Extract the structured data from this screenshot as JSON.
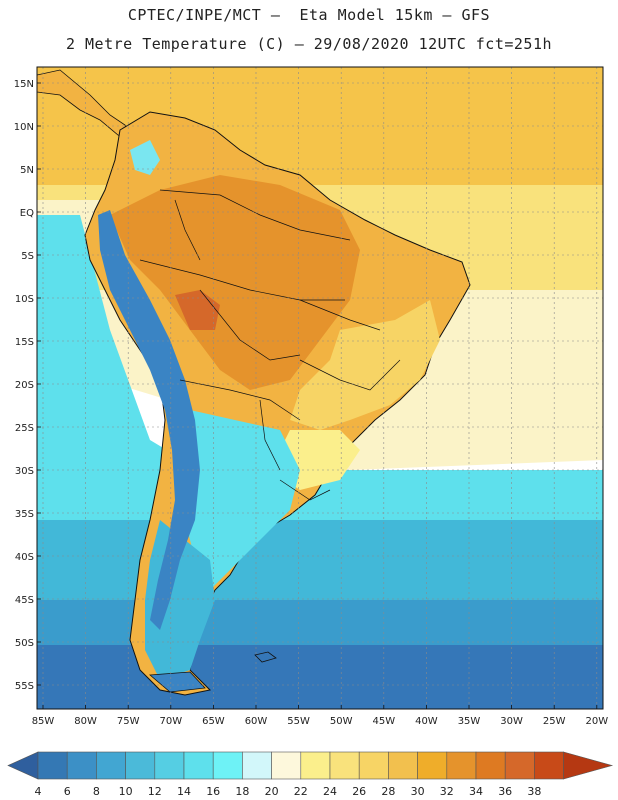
{
  "header": {
    "line1": "CPTEC/INPE/MCT –  Eta Model 15km – GFS",
    "line2": "2 Metre Temperature (C) – 29/08/2020 12UTC fct=251h"
  },
  "map": {
    "lat_labels": [
      "15N",
      "10N",
      "5N",
      "EQ",
      "5S",
      "10S",
      "15S",
      "20S",
      "25S",
      "30S",
      "35S",
      "40S",
      "45S",
      "50S",
      "55S"
    ],
    "lon_labels": [
      "85W",
      "80W",
      "75W",
      "70W",
      "65W",
      "60W",
      "55W",
      "50W",
      "45W",
      "40W",
      "35W",
      "30W",
      "25W",
      "20W"
    ],
    "ocean_colors": {
      "tropical_atlantic": "#f5c44a",
      "equatorial": "#f9e27c",
      "south_atlantic_warm": "#fbf3c8",
      "mid_cool": "#5ee0ec",
      "cool": "#42b8d8",
      "cold": "#3a9ccc",
      "deep_cold": "#3577b8"
    },
    "land_colors": {
      "hot": "#e5932c",
      "very_hot": "#d5682a",
      "warm": "#f2b342",
      "mild": "#f7d465",
      "cool_highland": "#7ae6f0",
      "andes_cold": "#3a84c4"
    }
  },
  "colorbar": {
    "labels": [
      "4",
      "6",
      "8",
      "10",
      "12",
      "14",
      "16",
      "18",
      "20",
      "22",
      "24",
      "26",
      "28",
      "30",
      "32",
      "34",
      "36",
      "38"
    ],
    "colors": [
      "#2f5f9e",
      "#3478b4",
      "#3c90c6",
      "#42a6d2",
      "#4bbad9",
      "#55cee3",
      "#5ee0ec",
      "#6ef2f6",
      "#d2f7fa",
      "#fdf8dc",
      "#fbef8c",
      "#f9e27c",
      "#f7d465",
      "#f2c04e",
      "#efad2a",
      "#e5932c",
      "#de7a22",
      "#d5682a",
      "#c84a18",
      "#b53812"
    ]
  }
}
